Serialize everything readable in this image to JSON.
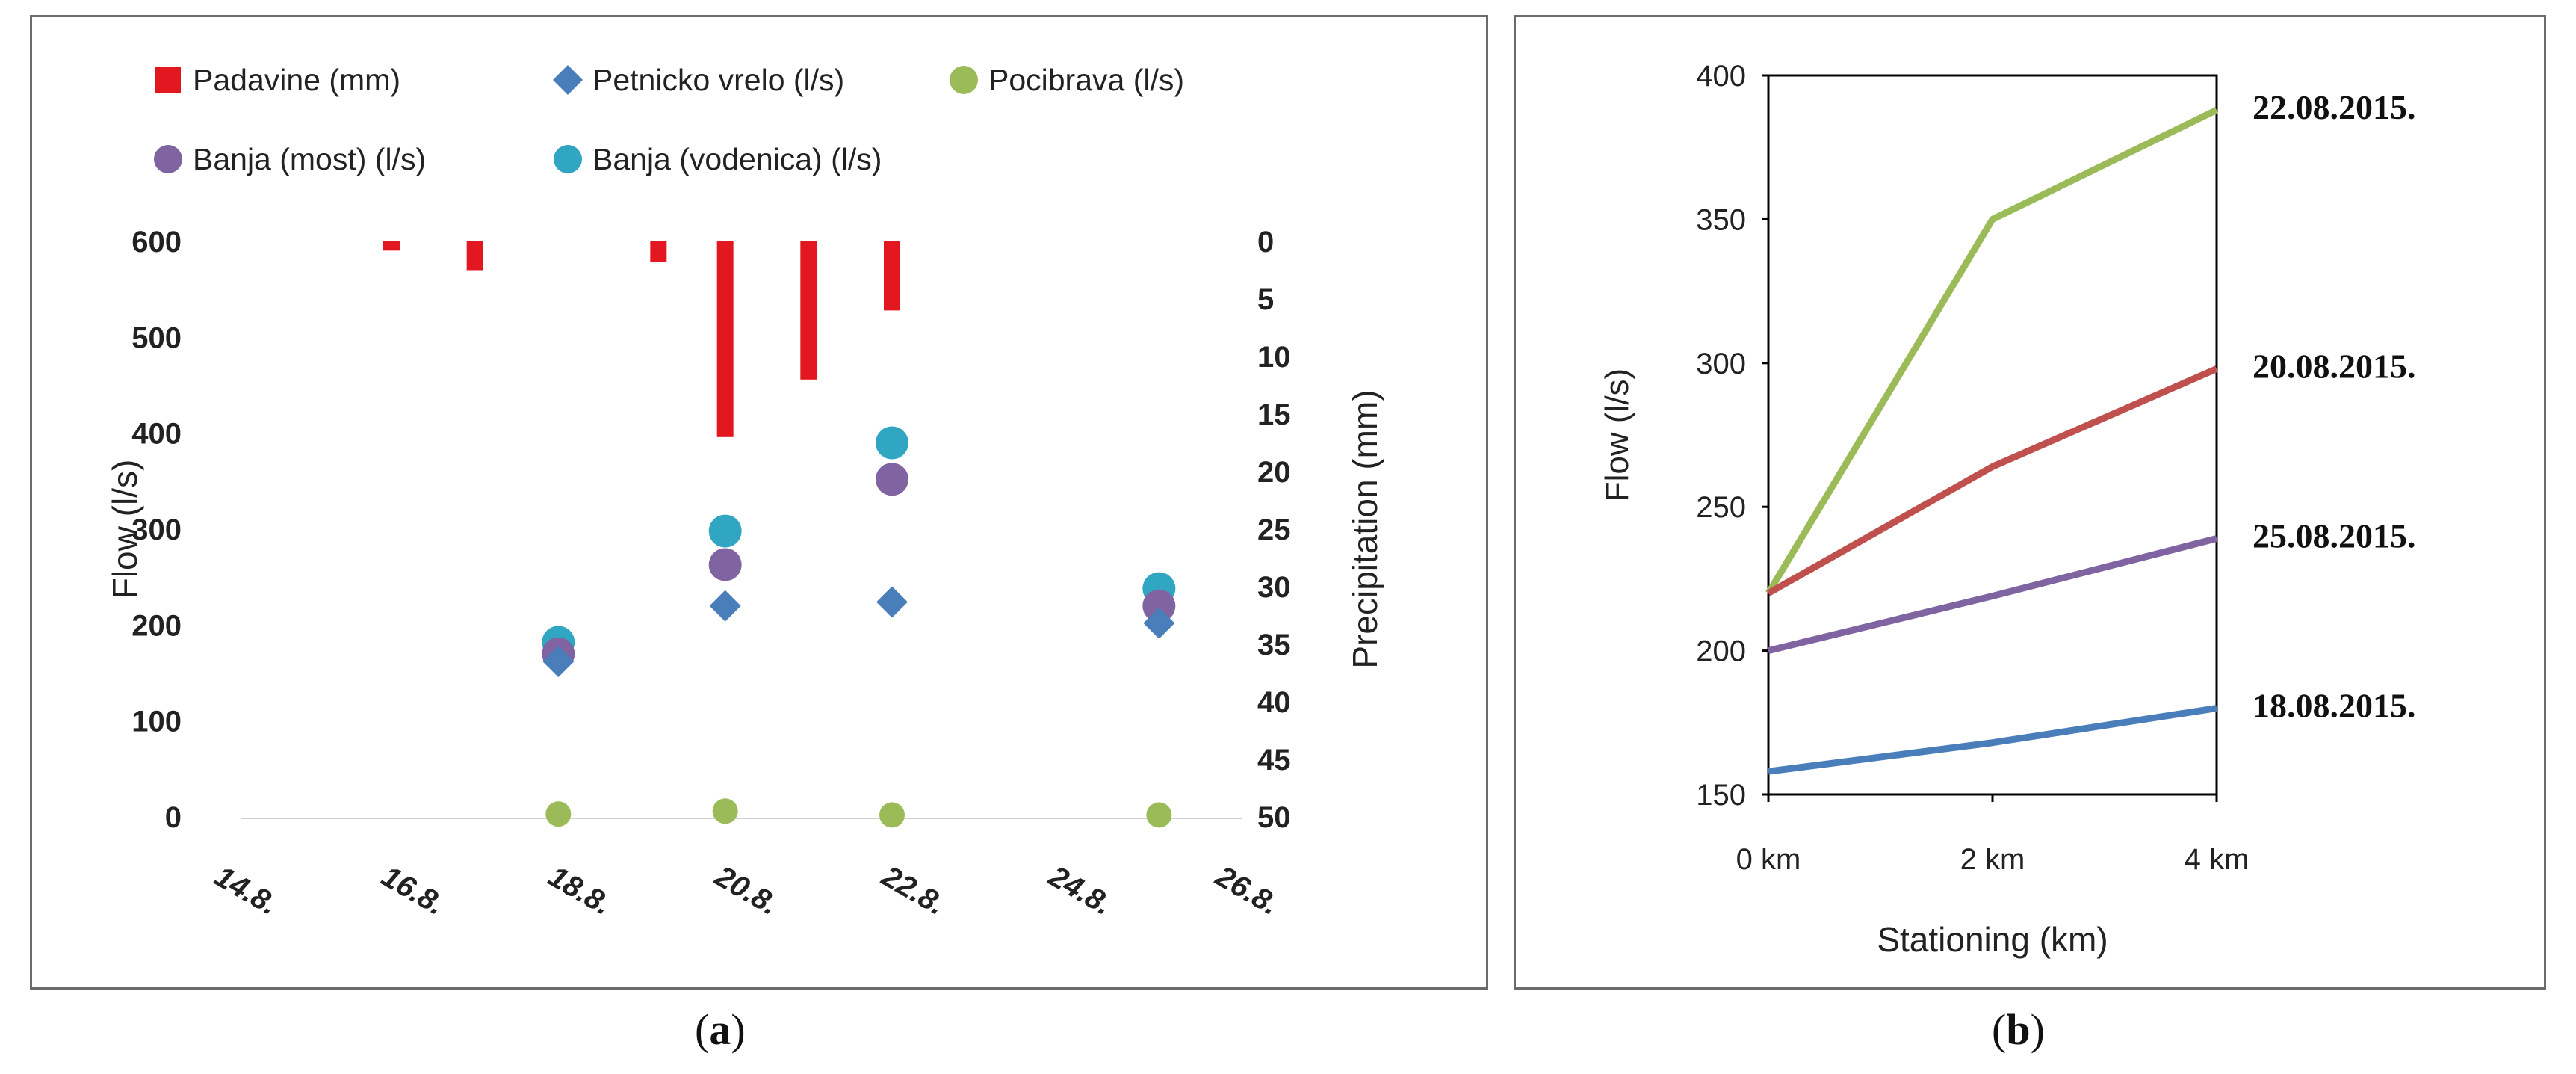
{
  "captions": {
    "a_open": "(",
    "a_letter": "a",
    "a_close": ")",
    "b_open": "(",
    "b_letter": "b",
    "b_close": ")"
  },
  "chart_data": [
    {
      "type": "scatter",
      "panel": "a",
      "title": "",
      "xlabel": "",
      "ylabel": "Flow (l/s)",
      "y2label": "Precipitation (mm)",
      "x_ticks": [
        "14.8.",
        "16.8.",
        "18.8.",
        "20.8.",
        "22.8.",
        "24.8.",
        "26.8."
      ],
      "x_range": [
        14,
        26
      ],
      "ylim": [
        0,
        600
      ],
      "y_ticks": [
        0,
        100,
        200,
        300,
        400,
        500,
        600
      ],
      "y2lim": [
        0,
        50
      ],
      "y2_reversed": true,
      "y2_ticks": [
        0,
        5,
        10,
        15,
        20,
        25,
        30,
        35,
        40,
        45,
        50
      ],
      "legend_position": "top",
      "colors": {
        "padavine": "#e3171f",
        "petnicko": "#4a7ebb",
        "pocibrava": "#9bbb59",
        "banja_most": "#8064a2",
        "banja_vodenica": "#31a6c2"
      },
      "legend": [
        {
          "key": "padavine",
          "label": "Padavine (mm)",
          "marker": "square"
        },
        {
          "key": "petnicko",
          "label": "Petnicko vrelo (l/s)",
          "marker": "diamond"
        },
        {
          "key": "pocibrava",
          "label": "Pocibrava (l/s)",
          "marker": "circle"
        },
        {
          "key": "banja_most",
          "label": "Banja (most) (l/s)",
          "marker": "circle"
        },
        {
          "key": "banja_vodenica",
          "label": "Banja (vodenica) (l/s)",
          "marker": "circle"
        }
      ],
      "precipitation": [
        {
          "x": 15.8,
          "value": 0.8
        },
        {
          "x": 16.8,
          "value": 2.5
        },
        {
          "x": 19.0,
          "value": 1.8
        },
        {
          "x": 19.8,
          "value": 17
        },
        {
          "x": 20.8,
          "value": 12
        },
        {
          "x": 21.8,
          "value": 6
        }
      ],
      "series": [
        {
          "key": "petnicko",
          "name": "Petnicko vrelo (l/s)",
          "points": [
            [
              17.8,
              162
            ],
            [
              19.8,
              220
            ],
            [
              21.8,
              224
            ],
            [
              25.0,
              202
            ]
          ]
        },
        {
          "key": "pocibrava",
          "name": "Pocibrava (l/s)",
          "points": [
            [
              17.8,
              3
            ],
            [
              19.8,
              6
            ],
            [
              21.8,
              2
            ],
            [
              25.0,
              2
            ]
          ]
        },
        {
          "key": "banja_most",
          "name": "Banja (most) (l/s)",
          "points": [
            [
              17.8,
              170
            ],
            [
              19.8,
              263
            ],
            [
              21.8,
              352
            ],
            [
              25.0,
              220
            ]
          ]
        },
        {
          "key": "banja_vodenica",
          "name": "Banja (vodenica) (l/s)",
          "points": [
            [
              17.8,
              182
            ],
            [
              19.8,
              298
            ],
            [
              21.8,
              390
            ],
            [
              25.0,
              238
            ]
          ]
        }
      ]
    },
    {
      "type": "line",
      "panel": "b",
      "title": "",
      "xlabel": "Stationing (km)",
      "ylabel": "Flow (l/s)",
      "categories": [
        "0 km",
        "2 km",
        "4 km"
      ],
      "x": [
        0,
        2,
        4
      ],
      "ylim": [
        150,
        400
      ],
      "y_ticks": [
        150,
        200,
        250,
        300,
        350,
        400
      ],
      "legend_position": "right (direct labels)",
      "series": [
        {
          "name": "22.08.2015.",
          "color": "#9bbb59",
          "values": [
            220,
            350,
            388
          ]
        },
        {
          "name": "20.08.2015.",
          "color": "#c0504d",
          "values": [
            220,
            264,
            298
          ]
        },
        {
          "name": "25.08.2015.",
          "color": "#8064a2",
          "values": [
            200,
            219,
            239
          ]
        },
        {
          "name": "18.08.2015.",
          "color": "#4a7ebb",
          "values": [
            158,
            168,
            180
          ]
        }
      ]
    }
  ]
}
